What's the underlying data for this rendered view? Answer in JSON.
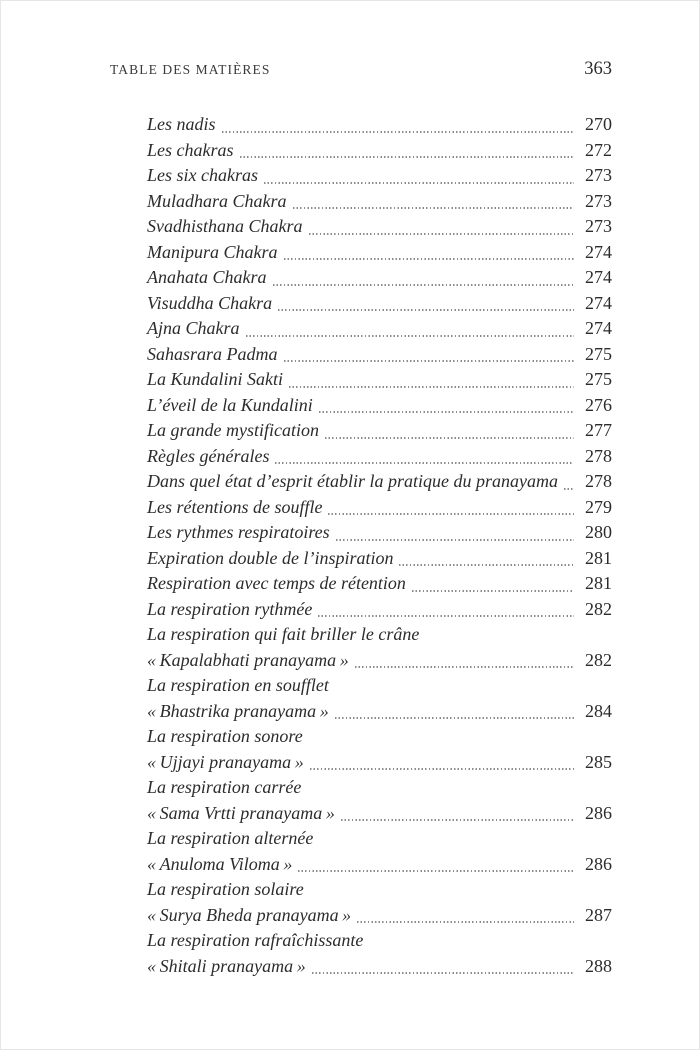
{
  "document": {
    "header": {
      "title": "TABLE DES MATIÈRES",
      "page_number": "363"
    },
    "toc": {
      "entries": [
        {
          "lines": [
            "Les nadis"
          ],
          "page": "270"
        },
        {
          "lines": [
            "Les chakras"
          ],
          "page": "272"
        },
        {
          "lines": [
            "Les six chakras"
          ],
          "page": "273"
        },
        {
          "lines": [
            "Muladhara Chakra"
          ],
          "page": "273"
        },
        {
          "lines": [
            "Svadhisthana Chakra"
          ],
          "page": "273"
        },
        {
          "lines": [
            "Manipura Chakra"
          ],
          "page": "274"
        },
        {
          "lines": [
            "Anahata Chakra"
          ],
          "page": "274"
        },
        {
          "lines": [
            "Visuddha Chakra"
          ],
          "page": "274"
        },
        {
          "lines": [
            "Ajna Chakra"
          ],
          "page": "274"
        },
        {
          "lines": [
            "Sahasrara Padma"
          ],
          "page": "275"
        },
        {
          "lines": [
            "La Kundalini Sakti"
          ],
          "page": "275"
        },
        {
          "lines": [
            "L’éveil de la Kundalini"
          ],
          "page": "276"
        },
        {
          "lines": [
            "La grande mystification"
          ],
          "page": "277"
        },
        {
          "lines": [
            "Règles générales"
          ],
          "page": "278"
        },
        {
          "lines": [
            "Dans quel état d’esprit établir la pratique du pranayama"
          ],
          "page": "278"
        },
        {
          "lines": [
            "Les rétentions de souffle"
          ],
          "page": "279"
        },
        {
          "lines": [
            "Les rythmes respiratoires"
          ],
          "page": "280"
        },
        {
          "lines": [
            "Expiration double de l’inspiration"
          ],
          "page": "281"
        },
        {
          "lines": [
            "Respiration avec temps de rétention"
          ],
          "page": "281"
        },
        {
          "lines": [
            "La respiration rythmée"
          ],
          "page": "282"
        },
        {
          "lines": [
            "La respiration qui fait briller le crâne",
            "« Kapalabhati pranayama »"
          ],
          "page": "282"
        },
        {
          "lines": [
            "La respiration en soufflet",
            "« Bhastrika pranayama »"
          ],
          "page": "284"
        },
        {
          "lines": [
            "La respiration sonore",
            "« Ujjayi pranayama »"
          ],
          "page": "285"
        },
        {
          "lines": [
            "La respiration carrée",
            "« Sama Vrtti pranayama »"
          ],
          "page": "286"
        },
        {
          "lines": [
            "La respiration alternée",
            "« Anuloma Viloma »"
          ],
          "page": "286"
        },
        {
          "lines": [
            "La respiration solaire",
            "« Surya Bheda pranayama »"
          ],
          "page": "287"
        },
        {
          "lines": [
            "La respiration rafraîchissante",
            "« Shitali pranayama »"
          ],
          "page": "288"
        }
      ]
    },
    "colors": {
      "text": "#2c2c2c",
      "header_text": "#3a3a3a",
      "leader_dots": "#8c8c8c",
      "page_background": "#ffffff"
    }
  }
}
